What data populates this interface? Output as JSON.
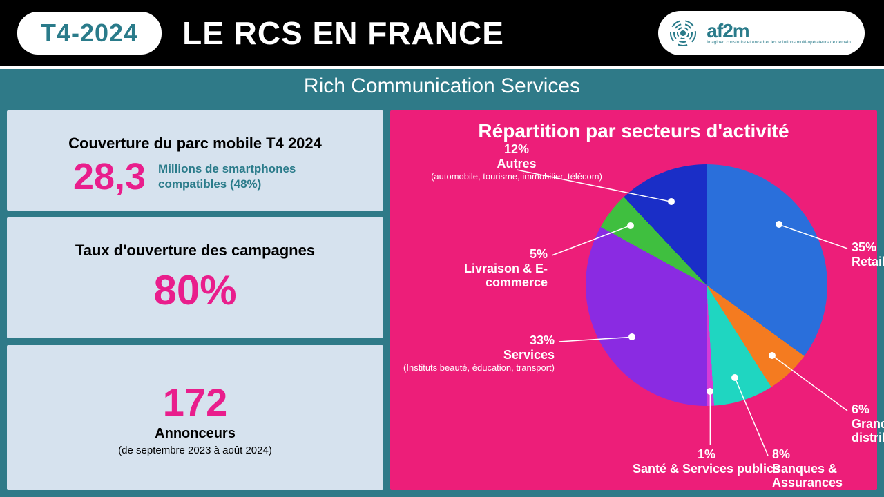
{
  "header": {
    "period": "T4-2024",
    "title": "LE RCS EN FRANCE",
    "logo_name": "af2m",
    "logo_tagline": "Imaginer, construire et encadrer les solutions multi-opérateurs de demain"
  },
  "subtitle": "Rich Communication Services",
  "kpi": {
    "coverage": {
      "title": "Couverture du parc mobile T4 2024",
      "value": "28,3",
      "sub": "Millions de smartphones compatibles (48%)"
    },
    "open_rate": {
      "title": "Taux d'ouverture des campagnes",
      "value": "80%"
    },
    "advertisers": {
      "value": "172",
      "label": "Annonceurs",
      "note": "(de septembre 2023 à août 2024)"
    }
  },
  "chart": {
    "title": "Répartition par secteurs d'activité",
    "type": "pie",
    "background": "#ed1e79",
    "slices": [
      {
        "label": "Retail",
        "pct": 35,
        "color": "#2a6fdb",
        "lbl_pct": "35%"
      },
      {
        "label": "Grande distribution",
        "pct": 6,
        "color": "#f47b20",
        "lbl_pct": "6%"
      },
      {
        "label": "Banques & Assurances",
        "pct": 8,
        "color": "#1fd6c1",
        "lbl_pct": "8%"
      },
      {
        "label": "Santé & Services publics",
        "pct": 1,
        "color": "#d63bd6",
        "lbl_pct": "1%"
      },
      {
        "label": "Services",
        "sublabel": "(Instituts beauté, éducation, transport)",
        "pct": 33,
        "color": "#8a2be2",
        "lbl_pct": "33%"
      },
      {
        "label": "Livraison & E-commerce",
        "pct": 5,
        "color": "#3fbf3f",
        "lbl_pct": "5%"
      },
      {
        "label": "Autres",
        "sublabel": "(automobile, tourisme, immobilier, télécom)",
        "pct": 12,
        "color": "#1a2ec7",
        "lbl_pct": "12%"
      }
    ]
  },
  "colors": {
    "teal": "#2f7a88",
    "magenta": "#e91e8c",
    "panel_bg": "#d6e2ee"
  }
}
